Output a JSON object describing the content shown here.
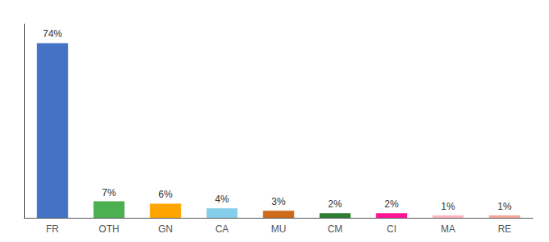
{
  "chart_data": {
    "type": "bar",
    "categories": [
      "FR",
      "OTH",
      "GN",
      "CA",
      "MU",
      "CM",
      "CI",
      "MA",
      "RE"
    ],
    "values": [
      74,
      7,
      6,
      4,
      3,
      2,
      2,
      1,
      1
    ],
    "value_labels": [
      "74%",
      "7%",
      "6%",
      "4%",
      "3%",
      "2%",
      "2%",
      "1%",
      "1%"
    ],
    "data_labels": true,
    "colors": [
      "#4472C4",
      "#4CAF50",
      "#FFA500",
      "#87CEEB",
      "#CD6B1A",
      "#2E7D32",
      "#FF1493",
      "#FFB6C1",
      "#F4A896"
    ],
    "ylim": [
      0,
      82
    ],
    "yticks": [],
    "grid": false,
    "tick_labels": "x"
  }
}
